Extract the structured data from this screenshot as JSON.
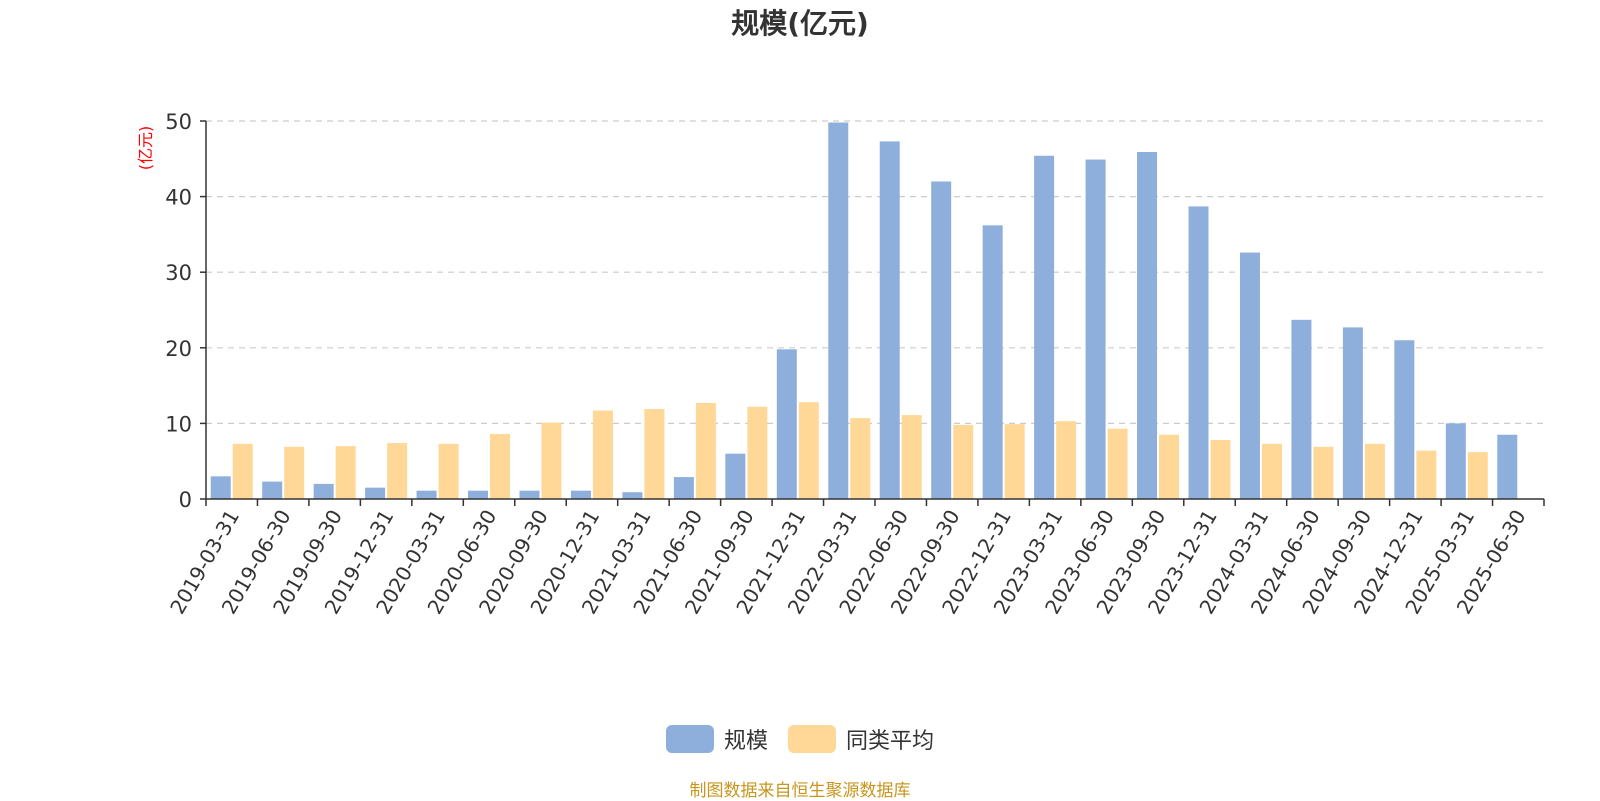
{
  "title": "规模(亿元)",
  "colors": {
    "scale": "#8eaedc",
    "avg": "#ffd898",
    "unit": "#ff0000",
    "source": "#c8961e",
    "grid": "#cccccc",
    "axis": "#333333"
  },
  "chart_data": {
    "type": "bar",
    "title": "规模(亿元)",
    "ylabel": "(亿元)",
    "ylim": [
      0,
      50
    ],
    "yticks": [
      0,
      10,
      20,
      30,
      40,
      50
    ],
    "grid": true,
    "legend_position": "bottom-center",
    "categories": [
      "2019-03-31",
      "2019-06-30",
      "2019-09-30",
      "2019-12-31",
      "2020-03-31",
      "2020-06-30",
      "2020-09-30",
      "2020-12-31",
      "2021-03-31",
      "2021-06-30",
      "2021-09-30",
      "2021-12-31",
      "2022-03-31",
      "2022-06-30",
      "2022-09-30",
      "2022-12-31",
      "2023-03-31",
      "2023-06-30",
      "2023-09-30",
      "2023-12-31",
      "2024-03-31",
      "2024-06-30",
      "2024-09-30",
      "2024-12-31",
      "2025-03-31",
      "2025-06-30"
    ],
    "series": [
      {
        "name": "规模",
        "color": "#8eaedc",
        "values": [
          3.0,
          2.3,
          2.0,
          1.5,
          1.1,
          1.1,
          1.1,
          1.1,
          0.9,
          2.9,
          6.0,
          19.8,
          49.8,
          47.3,
          42.0,
          36.2,
          45.4,
          44.9,
          45.9,
          38.7,
          32.6,
          23.7,
          22.7,
          21.0,
          10.0,
          8.5
        ]
      },
      {
        "name": "同类平均",
        "color": "#ffd898",
        "values": [
          7.3,
          6.9,
          7.0,
          7.4,
          7.3,
          8.6,
          10.1,
          11.7,
          11.9,
          12.7,
          12.2,
          12.8,
          10.7,
          11.1,
          9.8,
          9.9,
          10.3,
          9.3,
          8.5,
          7.8,
          7.3,
          6.9,
          7.3,
          6.4,
          6.2,
          null
        ]
      }
    ]
  },
  "legend": [
    {
      "label": "规模",
      "color": "#8eaedc"
    },
    {
      "label": "同类平均",
      "color": "#ffd898"
    }
  ],
  "source_text": "制图数据来自恒生聚源数据库"
}
